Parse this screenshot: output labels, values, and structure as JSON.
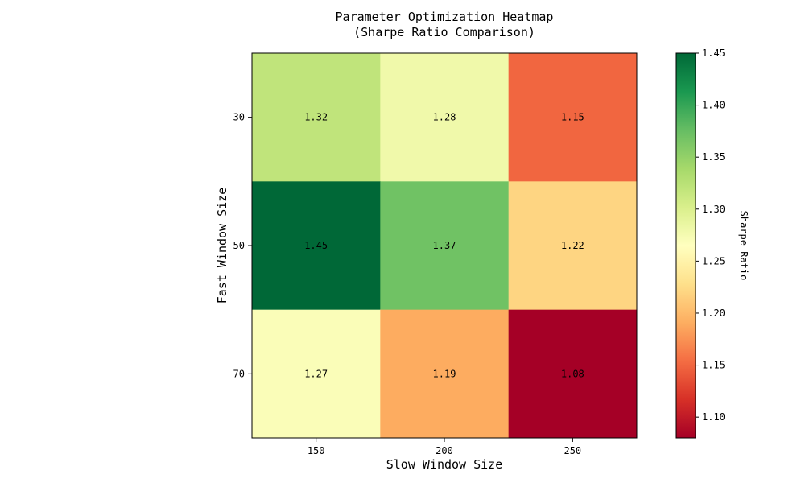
{
  "chart_data": {
    "type": "heatmap",
    "title": "Parameter Optimization Heatmap",
    "subtitle": "(Sharpe Ratio Comparison)",
    "xlabel": "Slow Window Size",
    "ylabel": "Fast Window Size",
    "x_categories": [
      "150",
      "200",
      "250"
    ],
    "y_categories": [
      "30",
      "50",
      "70"
    ],
    "values": [
      [
        1.32,
        1.28,
        1.15
      ],
      [
        1.45,
        1.37,
        1.22
      ],
      [
        1.27,
        1.19,
        1.08
      ]
    ],
    "value_labels": [
      [
        "1.32",
        "1.28",
        "1.15"
      ],
      [
        "1.45",
        "1.37",
        "1.22"
      ],
      [
        "1.27",
        "1.19",
        "1.08"
      ]
    ],
    "colormap": "RdYlGn",
    "colorbar": {
      "label": "Sharpe Ratio",
      "range": [
        1.08,
        1.45
      ],
      "ticks": [
        1.1,
        1.15,
        1.2,
        1.25,
        1.3,
        1.35,
        1.4,
        1.45
      ],
      "tick_labels": [
        "1.10",
        "1.15",
        "1.20",
        "1.25",
        "1.30",
        "1.35",
        "1.40",
        "1.45"
      ]
    },
    "grid": false
  }
}
